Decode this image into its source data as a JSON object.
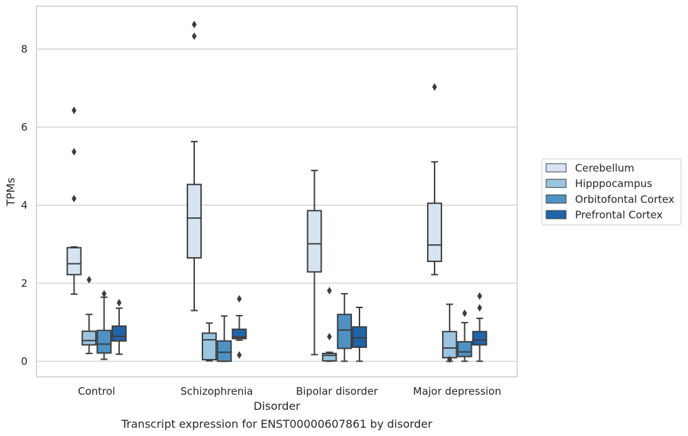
{
  "chart_data": {
    "type": "box",
    "caption": "Transcript expression for ENST00000607861 by disorder",
    "xlabel": "Disorder",
    "ylabel": "TPMs",
    "ylim": [
      -0.4,
      9.1
    ],
    "yticks": [
      0,
      2,
      4,
      6,
      8
    ],
    "grid": true,
    "legend_position": "right",
    "categories": [
      "Control",
      "Schizophrenia",
      "Bipolar disorder",
      "Major depression"
    ],
    "series": [
      {
        "name": "Cerebellum",
        "color": "#d6e4f2",
        "boxes": [
          {
            "whislo": 1.72,
            "q1": 2.22,
            "med": 2.5,
            "q3": 2.91,
            "whishi": 2.93,
            "fliers": [
              4.17,
              5.37,
              6.43
            ]
          },
          {
            "whislo": 1.3,
            "q1": 2.65,
            "med": 3.67,
            "q3": 4.53,
            "whishi": 5.63,
            "fliers": [
              8.33,
              8.63
            ]
          },
          {
            "whislo": 0.17,
            "q1": 2.29,
            "med": 3.01,
            "q3": 3.86,
            "whishi": 4.89,
            "fliers": []
          },
          {
            "whislo": 2.22,
            "q1": 2.56,
            "med": 2.98,
            "q3": 4.05,
            "whishi": 5.11,
            "fliers": [
              7.03
            ]
          }
        ]
      },
      {
        "name": "Hipppocampus",
        "color": "#9ac5e0",
        "boxes": [
          {
            "whislo": 0.2,
            "q1": 0.42,
            "med": 0.53,
            "q3": 0.77,
            "whishi": 1.2,
            "fliers": [
              2.09
            ]
          },
          {
            "whislo": 0.01,
            "q1": 0.04,
            "med": 0.55,
            "q3": 0.72,
            "whishi": 0.98,
            "fliers": []
          },
          {
            "whislo": 0.0,
            "q1": 0.01,
            "med": 0.15,
            "q3": 0.2,
            "whishi": 0.23,
            "fliers": [
              0.63,
              1.81
            ]
          },
          {
            "whislo": 0.0,
            "q1": 0.09,
            "med": 0.34,
            "q3": 0.76,
            "whishi": 1.46,
            "fliers": [
              0.05
            ]
          }
        ]
      },
      {
        "name": "Orbitofontal Cortex",
        "color": "#4e92c5",
        "boxes": [
          {
            "whislo": 0.05,
            "q1": 0.21,
            "med": 0.44,
            "q3": 0.79,
            "whishi": 1.64,
            "fliers": [
              1.73
            ]
          },
          {
            "whislo": 0.0,
            "q1": 0.0,
            "med": 0.23,
            "q3": 0.52,
            "whishi": 1.16,
            "fliers": []
          },
          {
            "whislo": 0.0,
            "q1": 0.33,
            "med": 0.8,
            "q3": 1.2,
            "whishi": 1.73,
            "fliers": []
          },
          {
            "whislo": 0.0,
            "q1": 0.12,
            "med": 0.24,
            "q3": 0.5,
            "whishi": 0.99,
            "fliers": [
              1.23
            ]
          }
        ]
      },
      {
        "name": "Prefrontal Cortex",
        "color": "#2165a9",
        "boxes": [
          {
            "whislo": 0.18,
            "q1": 0.52,
            "med": 0.64,
            "q3": 0.9,
            "whishi": 1.36,
            "fliers": [
              1.5
            ]
          },
          {
            "whislo": 0.54,
            "q1": 0.58,
            "med": 0.62,
            "q3": 0.82,
            "whishi": 1.17,
            "fliers": [
              0.16,
              1.6
            ]
          },
          {
            "whislo": 0.0,
            "q1": 0.36,
            "med": 0.6,
            "q3": 0.88,
            "whishi": 1.38,
            "fliers": []
          },
          {
            "whislo": 0.0,
            "q1": 0.42,
            "med": 0.54,
            "q3": 0.76,
            "whishi": 1.1,
            "fliers": [
              1.37,
              1.67
            ]
          }
        ]
      }
    ]
  }
}
